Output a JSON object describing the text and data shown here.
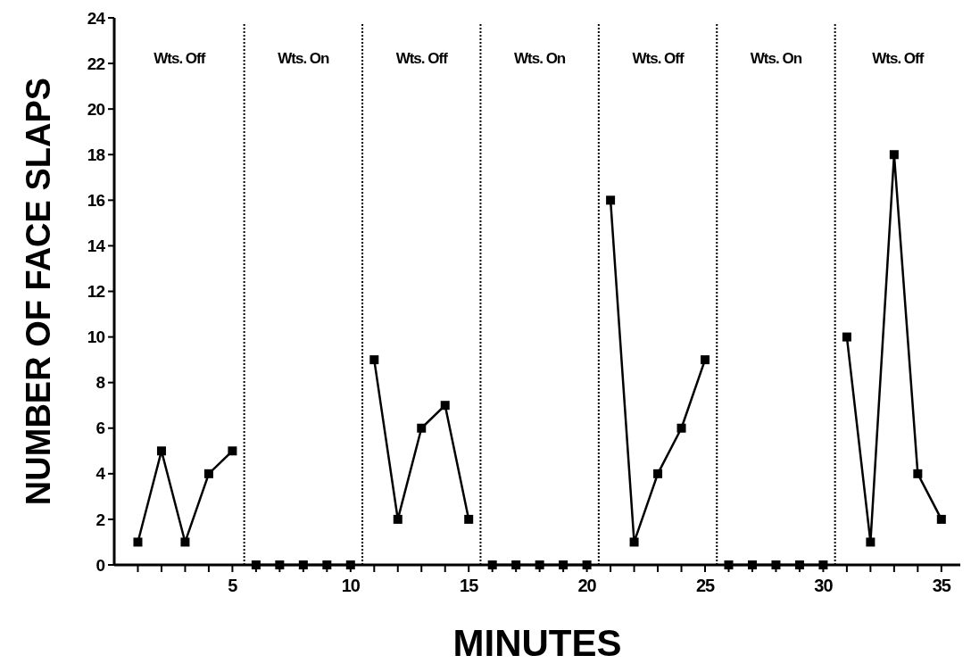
{
  "chart_data": {
    "type": "line",
    "xlabel": "MINUTES",
    "ylabel": "NUMBER OF FACE SLAPS",
    "xlim": [
      0,
      35.8
    ],
    "ylim": [
      0,
      24
    ],
    "xticks": [
      {
        "value": 1,
        "label": null
      },
      {
        "value": 2,
        "label": null
      },
      {
        "value": 3,
        "label": null
      },
      {
        "value": 4,
        "label": null
      },
      5,
      {
        "value": 6,
        "label": null
      },
      {
        "value": 7,
        "label": null
      },
      {
        "value": 8,
        "label": null
      },
      {
        "value": 9,
        "label": null
      },
      10,
      {
        "value": 11,
        "label": null
      },
      {
        "value": 12,
        "label": null
      },
      {
        "value": 13,
        "label": null
      },
      {
        "value": 14,
        "label": null
      },
      15,
      {
        "value": 16,
        "label": null
      },
      {
        "value": 17,
        "label": null
      },
      {
        "value": 18,
        "label": null
      },
      {
        "value": 19,
        "label": null
      },
      20,
      {
        "value": 21,
        "label": null
      },
      {
        "value": 22,
        "label": null
      },
      {
        "value": 23,
        "label": null
      },
      {
        "value": 24,
        "label": null
      },
      25,
      {
        "value": 26,
        "label": null
      },
      {
        "value": 27,
        "label": null
      },
      {
        "value": 28,
        "label": null
      },
      {
        "value": 29,
        "label": null
      },
      30,
      {
        "value": 31,
        "label": null
      },
      {
        "value": 32,
        "label": null
      },
      {
        "value": 33,
        "label": null
      },
      {
        "value": 34,
        "label": null
      },
      35
    ],
    "yticks": [
      0,
      2,
      4,
      6,
      8,
      10,
      12,
      14,
      16,
      18,
      20,
      22,
      24
    ],
    "grid": false,
    "marker": "square",
    "line_style": "solid",
    "series": [
      {
        "color": "#000000",
        "x": [
          1,
          2,
          3,
          4,
          5
        ],
        "values": [
          1,
          5,
          1,
          4,
          5
        ]
      },
      {
        "color": "#000000",
        "x": [
          6,
          7,
          8,
          9,
          10
        ],
        "values": [
          0,
          0,
          0,
          0,
          0
        ]
      },
      {
        "color": "#000000",
        "x": [
          11,
          12,
          13,
          14,
          15
        ],
        "values": [
          9,
          2,
          6,
          7,
          2
        ]
      },
      {
        "color": "#000000",
        "x": [
          16,
          17,
          18,
          19,
          20
        ],
        "values": [
          0,
          0,
          0,
          0,
          0
        ]
      },
      {
        "color": "#000000",
        "x": [
          21,
          22,
          23,
          24,
          25
        ],
        "values": [
          16,
          1,
          4,
          6,
          9
        ]
      },
      {
        "color": "#000000",
        "x": [
          26,
          27,
          28,
          29,
          30
        ],
        "values": [
          0,
          0,
          0,
          0,
          0
        ]
      },
      {
        "color": "#000000",
        "x": [
          31,
          32,
          33,
          34,
          35
        ],
        "values": [
          10,
          1,
          18,
          4,
          2
        ]
      }
    ],
    "ref_lines": [
      {
        "axis": "x",
        "value": 5.5,
        "line_style": "dotted"
      },
      {
        "axis": "x",
        "value": 10.5,
        "line_style": "dotted"
      },
      {
        "axis": "x",
        "value": 15.5,
        "line_style": "dotted"
      },
      {
        "axis": "x",
        "value": 20.5,
        "line_style": "dotted"
      },
      {
        "axis": "x",
        "value": 25.5,
        "line_style": "dotted"
      },
      {
        "axis": "x",
        "value": 30.5,
        "line_style": "dotted"
      }
    ],
    "annotations": [
      "Wts. Off",
      "Wts. On",
      "Wts. Off",
      "Wts. On",
      "Wts. Off",
      "Wts. On",
      "Wts. Off"
    ]
  }
}
